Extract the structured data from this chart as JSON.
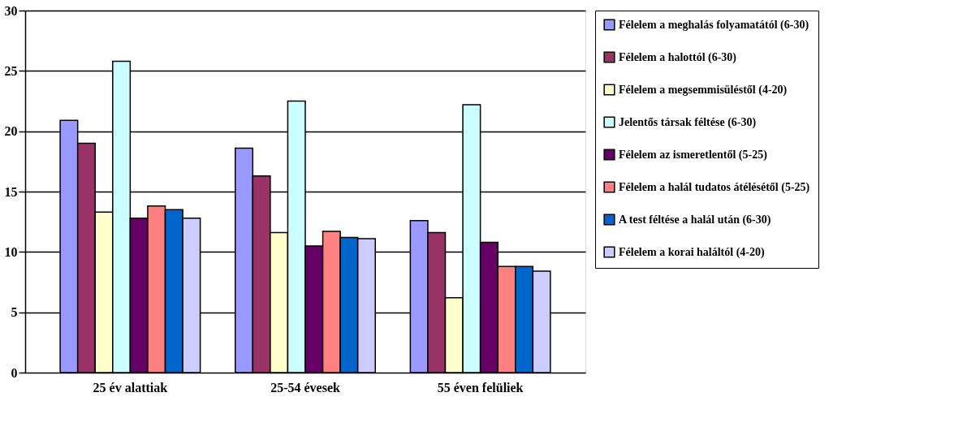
{
  "chart_data": {
    "type": "bar",
    "categories": [
      "25 év alattiak",
      "25-54 évesek",
      "55 éven felüliek"
    ],
    "series": [
      {
        "name": "Félelem a meghalás folyamatától (6-30)",
        "color": "#9999ff",
        "values": [
          20.9,
          18.6,
          12.6
        ]
      },
      {
        "name": "Félelem a halottól (6-30)",
        "color": "#993366",
        "values": [
          19.0,
          16.3,
          11.6
        ]
      },
      {
        "name": "Félelem a megsemmisüléstől (4-20)",
        "color": "#ffffcc",
        "values": [
          13.3,
          11.6,
          6.2
        ]
      },
      {
        "name": "Jelentős társak féltése (6-30)",
        "color": "#ccffff",
        "values": [
          25.8,
          22.5,
          22.2
        ]
      },
      {
        "name": "Félelem az ismeretlentől (5-25)",
        "color": "#660066",
        "values": [
          12.8,
          10.5,
          10.8
        ]
      },
      {
        "name": "Félelem a halál tudatos átélésétől (5-25)",
        "color": "#ff8080",
        "values": [
          13.8,
          11.7,
          8.8
        ]
      },
      {
        "name": "A test féltése a halál után (6-30)",
        "color": "#0066cc",
        "values": [
          13.5,
          11.2,
          8.8
        ]
      },
      {
        "name": "Félelem a korai haláltól (4-20)",
        "color": "#ccccff",
        "values": [
          12.8,
          11.1,
          8.4
        ]
      }
    ],
    "ylim": [
      0,
      30
    ],
    "yticks": [
      0,
      5,
      10,
      15,
      20,
      25,
      30
    ],
    "grid": "y",
    "legend": "right"
  }
}
